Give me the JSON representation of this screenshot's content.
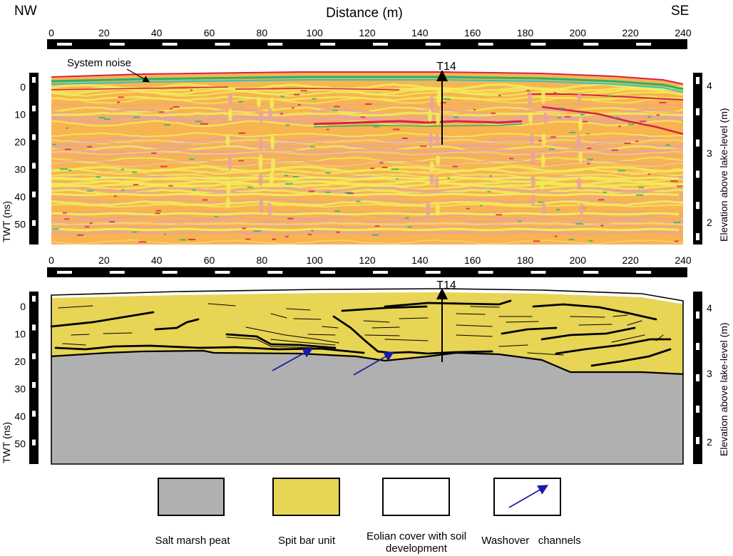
{
  "header": {
    "left_direction": "NW",
    "right_direction": "SE",
    "distance_label": "Distance (m)"
  },
  "distance_ticks": [
    "0",
    "20",
    "40",
    "60",
    "80",
    "100",
    "120",
    "140",
    "160",
    "180",
    "200",
    "220",
    "240"
  ],
  "twt_ticks": [
    "0",
    "10",
    "20",
    "30",
    "40",
    "50"
  ],
  "elevation_ticks": [
    "4",
    "3",
    "2"
  ],
  "axis_labels": {
    "left": "TWT (ns)",
    "right": "Elevation  above  lake-level (m)"
  },
  "top_panel": {
    "annotation": "System noise",
    "marker": "T14"
  },
  "bottom_panel": {
    "marker": "T14"
  },
  "legend": [
    {
      "label": "Salt marsh peat",
      "color": "#b0b0b0"
    },
    {
      "label": "Spit bar unit",
      "color": "#e8d455"
    },
    {
      "label": "Eolian cover with soil development",
      "color": "#ffffff"
    },
    {
      "label": "Washover   channels",
      "color": "#ffffff"
    }
  ],
  "colors": {
    "peat": "#b0b0b0",
    "spit_bar": "#e8d455",
    "washover_arrow": "#1a1aa8",
    "radar_base": "#f7b450",
    "radar_yellow": "#f2ec5a",
    "radar_pink": "#e7a3a0",
    "radar_red": "#d8204a",
    "radar_green": "#27b36c",
    "radar_cyan": "#2cc4c8"
  }
}
